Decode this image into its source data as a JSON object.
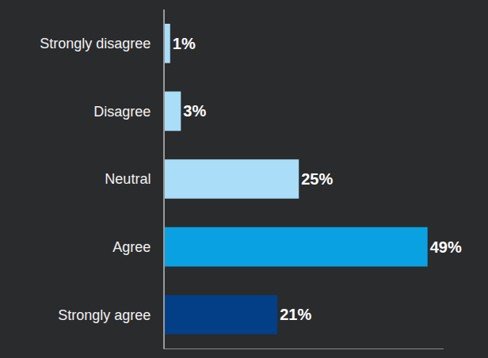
{
  "chart_data": {
    "type": "bar",
    "orientation": "horizontal",
    "categories": [
      "Strongly disagree",
      "Disagree",
      "Neutral",
      "Agree",
      "Strongly agree"
    ],
    "values": [
      1,
      3,
      25,
      49,
      21
    ],
    "value_labels": [
      "1%",
      "3%",
      "25%",
      "49%",
      "21%"
    ],
    "colors": [
      "#a9ddf8",
      "#a9ddf8",
      "#a9ddf8",
      "#09a1e2",
      "#023f86"
    ],
    "xlim": [
      0,
      52
    ],
    "data_labels": true,
    "tick_labels": "y",
    "grid": false
  }
}
